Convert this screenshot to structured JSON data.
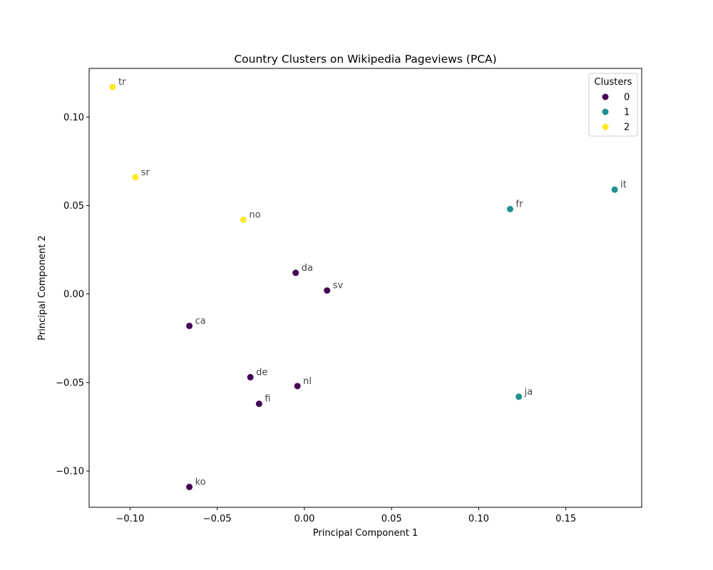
{
  "chart_data": {
    "type": "scatter",
    "title": "Country Clusters on Wikipedia Pageviews (PCA)",
    "xlabel": "Principal Component 1",
    "ylabel": "Principal Component 2",
    "xlim": [
      -0.1235,
      0.1935
    ],
    "ylim": [
      -0.1205,
      0.1275
    ],
    "xticks": [
      -0.1,
      -0.05,
      0.0,
      0.05,
      0.1,
      0.15
    ],
    "xtick_labels": [
      "−0.10",
      "−0.05",
      "0.00",
      "0.05",
      "0.10",
      "0.15"
    ],
    "yticks": [
      -0.1,
      -0.05,
      0.0,
      0.05,
      0.1
    ],
    "ytick_labels": [
      "−0.10",
      "−0.05",
      "0.00",
      "0.05",
      "0.10"
    ],
    "grid": false,
    "legend": {
      "title": "Clusters",
      "placement": "top-right",
      "entries": [
        {
          "label": "0",
          "color": "#440154"
        },
        {
          "label": "1",
          "color": "#21918c"
        },
        {
          "label": "2",
          "color": "#fde725"
        }
      ]
    },
    "points": [
      {
        "label": "tr",
        "x": -0.11,
        "y": 0.117,
        "cluster": 2
      },
      {
        "label": "sr",
        "x": -0.097,
        "y": 0.066,
        "cluster": 2
      },
      {
        "label": "no",
        "x": -0.035,
        "y": 0.042,
        "cluster": 2
      },
      {
        "label": "da",
        "x": -0.005,
        "y": 0.012,
        "cluster": 0
      },
      {
        "label": "sv",
        "x": 0.013,
        "y": 0.002,
        "cluster": 0
      },
      {
        "label": "ca",
        "x": -0.066,
        "y": -0.018,
        "cluster": 0
      },
      {
        "label": "de",
        "x": -0.031,
        "y": -0.047,
        "cluster": 0
      },
      {
        "label": "nl",
        "x": -0.004,
        "y": -0.052,
        "cluster": 0
      },
      {
        "label": "fi",
        "x": -0.026,
        "y": -0.062,
        "cluster": 0
      },
      {
        "label": "ko",
        "x": -0.066,
        "y": -0.109,
        "cluster": 0
      },
      {
        "label": "it",
        "x": 0.178,
        "y": 0.059,
        "cluster": 1
      },
      {
        "label": "fr",
        "x": 0.118,
        "y": 0.048,
        "cluster": 1
      },
      {
        "label": "ja",
        "x": 0.123,
        "y": -0.058,
        "cluster": 1
      }
    ]
  }
}
